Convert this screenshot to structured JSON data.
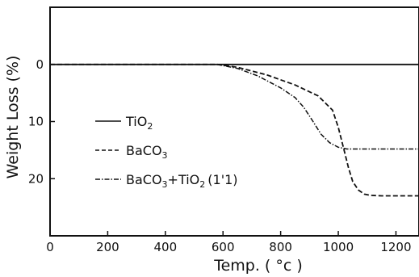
{
  "chart_data": {
    "type": "line",
    "title": "",
    "xlabel": "Temp. ( °c )",
    "ylabel": "Weight Loss (%)",
    "xlim": [
      0,
      1280
    ],
    "ylim": [
      -10,
      30
    ],
    "y_inverted": true,
    "xticks": [
      0,
      200,
      400,
      600,
      800,
      1000,
      1200
    ],
    "yticks": [
      0,
      10,
      20
    ],
    "grid": false,
    "legend_position": "left",
    "series": [
      {
        "name": "TiO2",
        "name_main": "TiO",
        "name_sub": "2",
        "style": "solid",
        "x": [
          0,
          1280
        ],
        "y": [
          0,
          0
        ]
      },
      {
        "name": "BaCO3",
        "name_main": "BaCO",
        "name_sub": "3",
        "style": "dashed",
        "x": [
          0,
          580,
          650,
          750,
          850,
          930,
          980,
          1000,
          1020,
          1035,
          1050,
          1070,
          1090,
          1110,
          1150,
          1280
        ],
        "y": [
          0,
          0,
          0.5,
          1.8,
          3.6,
          5.5,
          8.0,
          11.0,
          15.0,
          18.0,
          20.5,
          22.0,
          22.7,
          22.9,
          23.0,
          23.0
        ]
      },
      {
        "name": "BaCO3+TiO2 (1:1)",
        "name_parts": [
          "BaCO",
          "3",
          "+TiO",
          "2",
          "(1'1)"
        ],
        "style": "dash-dot",
        "x": [
          0,
          580,
          650,
          720,
          800,
          850,
          880,
          910,
          940,
          970,
          1000,
          1030,
          1100,
          1280
        ],
        "y": [
          0,
          0,
          0.7,
          2.0,
          4.1,
          5.8,
          7.5,
          9.8,
          12.2,
          13.7,
          14.5,
          14.8,
          14.8,
          14.8
        ]
      }
    ]
  }
}
